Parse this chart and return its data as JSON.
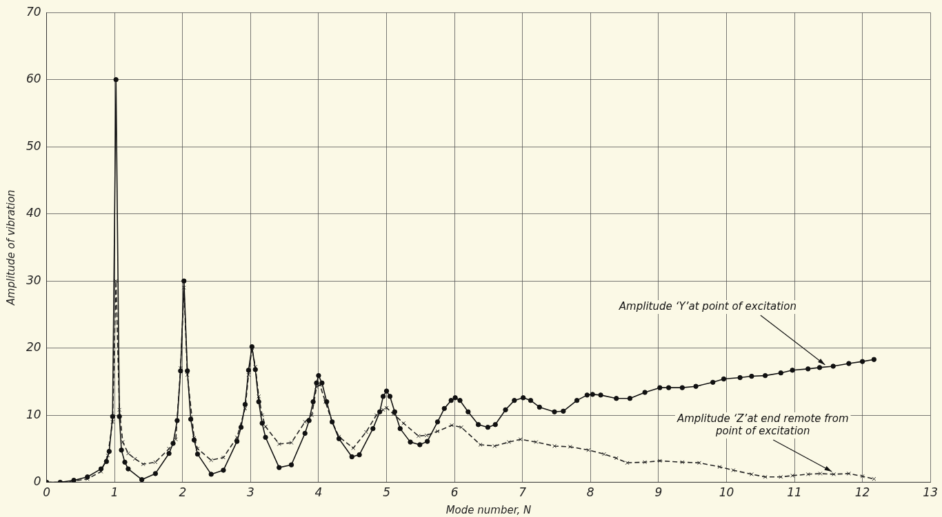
{
  "chart_data": {
    "type": "line",
    "xlabel": "Mode number, N",
    "ylabel": "Amplitude of vibration",
    "xlim": [
      0,
      13
    ],
    "xticks": [
      0,
      1,
      2,
      3,
      4,
      5,
      6,
      7,
      8,
      9,
      10,
      11,
      12,
      13
    ],
    "ylim": [
      0,
      70
    ],
    "yticks": [
      0,
      10,
      20,
      30,
      40,
      50,
      60,
      70
    ],
    "grid": true,
    "series": [
      {
        "color": "#111111",
        "marker": "circle",
        "line_style": "solid",
        "x": [
          0,
          0.2,
          0.4,
          0.6,
          0.8,
          0.88,
          0.92,
          0.97,
          1.02,
          1.07,
          1.1,
          1.15,
          1.2,
          1.4,
          1.6,
          1.8,
          1.86,
          1.92,
          1.97,
          2.02,
          2.07,
          2.12,
          2.17,
          2.22,
          2.42,
          2.6,
          2.8,
          2.86,
          2.92,
          2.97,
          3.02,
          3.07,
          3.12,
          3.17,
          3.22,
          3.42,
          3.6,
          3.8,
          3.86,
          3.92,
          3.97,
          4.0,
          4.05,
          4.12,
          4.2,
          4.3,
          4.49,
          4.6,
          4.8,
          4.9,
          4.95,
          5.0,
          5.05,
          5.12,
          5.2,
          5.35,
          5.49,
          5.6,
          5.75,
          5.85,
          5.95,
          6.01,
          6.08,
          6.2,
          6.35,
          6.49,
          6.6,
          6.75,
          6.88,
          7.01,
          7.12,
          7.25,
          7.47,
          7.6,
          7.8,
          7.95,
          8.03,
          8.15,
          8.38,
          8.58,
          8.8,
          9.02,
          9.15,
          9.35,
          9.55,
          9.8,
          9.96,
          10.2,
          10.37,
          10.57,
          10.8,
          10.97,
          11.2,
          11.37,
          11.57,
          11.8,
          12.0,
          12.17
        ],
        "values": [
          0,
          0,
          0.3,
          0.8,
          2,
          3.1,
          4.6,
          9.8,
          60,
          9.8,
          4.8,
          3,
          2,
          0.4,
          1.3,
          4.3,
          5.8,
          9.2,
          16.6,
          30,
          16.6,
          9.4,
          6.3,
          4.2,
          1.2,
          1.8,
          6.1,
          8.2,
          11.6,
          16.7,
          20.2,
          16.8,
          12,
          8.8,
          6.7,
          2.2,
          2.6,
          7.3,
          9.2,
          12,
          14.8,
          15.9,
          14.8,
          12,
          9,
          6.5,
          3.8,
          4.1,
          8,
          10.5,
          12.8,
          13.6,
          12.8,
          10.5,
          8,
          6,
          5.6,
          6.1,
          9,
          11,
          12.2,
          12.6,
          12.2,
          10.5,
          8.6,
          8.2,
          8.6,
          10.8,
          12.2,
          12.6,
          12.2,
          11.2,
          10.5,
          10.6,
          12.2,
          13,
          13.1,
          13,
          12.5,
          12.5,
          13.4,
          14.1,
          14.1,
          14.1,
          14.3,
          14.9,
          15.4,
          15.6,
          15.8,
          15.9,
          16.3,
          16.7,
          16.9,
          17.1,
          17.3,
          17.7,
          18.0,
          18.3
        ]
      },
      {
        "color": "#222222",
        "marker": "cross",
        "line_style": "dashed",
        "x": [
          0,
          0.2,
          0.4,
          0.6,
          0.8,
          0.9,
          0.97,
          1.02,
          1.07,
          1.12,
          1.2,
          1.3,
          1.42,
          1.6,
          1.8,
          1.9,
          1.97,
          2.02,
          2.07,
          2.17,
          2.22,
          2.42,
          2.6,
          2.8,
          2.92,
          2.97,
          3.02,
          3.07,
          3.12,
          3.17,
          3.22,
          3.42,
          3.6,
          3.8,
          3.9,
          3.97,
          4.02,
          4.1,
          4.2,
          4.3,
          4.51,
          4.7,
          4.85,
          4.95,
          5.0,
          5.1,
          5.25,
          5.47,
          5.59,
          5.75,
          5.96,
          6.1,
          6.38,
          6.59,
          6.8,
          6.97,
          7.2,
          7.47,
          7.7,
          7.97,
          8.2,
          8.38,
          8.54,
          8.8,
          9.02,
          9.35,
          9.6,
          9.9,
          10.1,
          10.37,
          10.57,
          10.8,
          10.97,
          11.2,
          11.38,
          11.58,
          11.8,
          12.0,
          12.17
        ],
        "values": [
          0,
          0,
          0.2,
          0.5,
          1.6,
          4,
          9,
          30,
          10.8,
          6,
          4.3,
          3.5,
          2.7,
          3,
          5,
          6.4,
          17,
          29,
          16,
          6.6,
          5,
          3.3,
          3.7,
          6.7,
          11,
          16,
          20,
          17.2,
          12.8,
          10,
          8.3,
          5.7,
          5.9,
          9,
          10,
          14.2,
          14.5,
          12,
          9,
          6.8,
          5.1,
          7.5,
          10,
          10.8,
          11.1,
          10.2,
          8.8,
          6.9,
          7.0,
          7.6,
          8.5,
          8.2,
          5.6,
          5.4,
          6,
          6.4,
          6,
          5.4,
          5.3,
          4.8,
          4.2,
          3.6,
          2.9,
          3,
          3.2,
          3.0,
          2.9,
          2.3,
          1.8,
          1.2,
          0.8,
          0.8,
          1.0,
          1.2,
          1.3,
          1.2,
          1.3,
          0.9,
          0.5
        ]
      }
    ],
    "annotations": [
      {
        "text": "Amplitude ‘Y’at point of excitation",
        "x": 11.45,
        "y": 17.2
      },
      {
        "text": "Amplitude ‘Z’at end remote from\npoint of excitation",
        "x": 11.55,
        "y": 1.3
      }
    ]
  }
}
